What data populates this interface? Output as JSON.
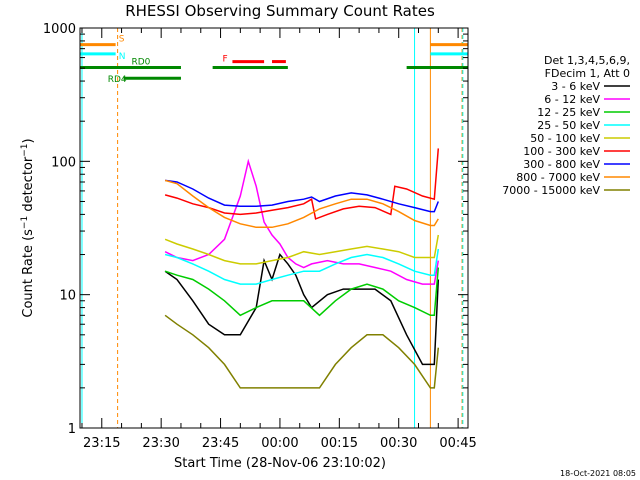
{
  "chart_data": {
    "type": "line",
    "title": "RHESSI Observing Summary Count Rates",
    "xlabel": "Start Time (28-Nov-06 23:10:02)",
    "ylabel": "Count Rate (s⁻¹ detector⁻¹)",
    "ylabel_main": "Count Rate (s",
    "ylabel_exp1": "−1",
    "ylabel_mid": " detector",
    "ylabel_exp2": "−1",
    "ylabel_end": ")",
    "yscale": "log",
    "ylim": [
      1,
      1000
    ],
    "xlim_minutes": [
      -0.5,
      97.5
    ],
    "xticks": [
      {
        "label": "23:15",
        "t": 5
      },
      {
        "label": "23:30",
        "t": 20
      },
      {
        "label": "23:45",
        "t": 35
      },
      {
        "label": "00:00",
        "t": 50
      },
      {
        "label": "00:15",
        "t": 65
      },
      {
        "label": "00:30",
        "t": 80
      },
      {
        "label": "00:45",
        "t": 95
      }
    ],
    "yticks": [
      {
        "label": "1",
        "v": 1
      },
      {
        "label": "10",
        "v": 10
      },
      {
        "label": "100",
        "v": 100
      },
      {
        "label": "1000",
        "v": 1000
      }
    ],
    "legend": {
      "placement": "right",
      "header": [
        "Det 1,3,4,5,6,9,",
        "FDecim 1, Att 0"
      ]
    },
    "series": [
      {
        "name": "3 - 6 keV",
        "color": "#000000",
        "x": [
          21,
          24,
          28,
          32,
          36,
          40,
          44,
          46,
          48,
          50,
          52,
          54,
          56,
          58,
          62,
          66,
          70,
          74,
          78,
          82,
          86,
          89,
          90
        ],
        "y": [
          15,
          13,
          9,
          6,
          5,
          5,
          8,
          18,
          13,
          20,
          17,
          14,
          10,
          8,
          10,
          11,
          11,
          11,
          9,
          5,
          3,
          3,
          13
        ]
      },
      {
        "name": "6 - 12 keV",
        "color": "#ff00ff",
        "x": [
          21,
          24,
          28,
          32,
          36,
          40,
          42,
          44,
          46,
          48,
          50,
          52,
          54,
          56,
          58,
          62,
          66,
          70,
          74,
          78,
          82,
          86,
          89,
          90
        ],
        "y": [
          21,
          19,
          18,
          20,
          26,
          55,
          100,
          65,
          35,
          28,
          24,
          19,
          17,
          16,
          17,
          18,
          17,
          17,
          16,
          15,
          13,
          12,
          12,
          18
        ]
      },
      {
        "name": "12 - 25 keV",
        "color": "#00cc00",
        "x": [
          21,
          24,
          28,
          32,
          36,
          40,
          44,
          48,
          52,
          56,
          60,
          64,
          68,
          72,
          76,
          80,
          84,
          88,
          89,
          90
        ],
        "y": [
          15,
          14,
          13,
          11,
          9,
          7,
          8,
          9,
          9,
          9,
          7,
          9,
          11,
          12,
          11,
          9,
          8,
          7,
          7,
          16
        ]
      },
      {
        "name": "25 - 50 keV",
        "color": "#00ffff",
        "x": [
          21,
          24,
          28,
          32,
          36,
          40,
          44,
          48,
          52,
          56,
          60,
          64,
          68,
          72,
          76,
          80,
          84,
          88,
          89,
          90
        ],
        "y": [
          20,
          19,
          17,
          15,
          13,
          12,
          12,
          13,
          14,
          15,
          15,
          17,
          19,
          20,
          19,
          17,
          15,
          14,
          14,
          22
        ]
      },
      {
        "name": "50 - 100 keV",
        "color": "#cccc00",
        "x": [
          21,
          24,
          28,
          32,
          36,
          40,
          44,
          48,
          52,
          56,
          60,
          64,
          68,
          72,
          76,
          80,
          84,
          88,
          89,
          90
        ],
        "y": [
          26,
          24,
          22,
          20,
          18,
          17,
          17,
          18,
          19,
          21,
          20,
          21,
          22,
          23,
          22,
          21,
          19,
          19,
          19,
          28
        ]
      },
      {
        "name": "100 - 300 keV",
        "color": "#ff0000",
        "x": [
          21,
          24,
          28,
          32,
          36,
          40,
          44,
          48,
          52,
          56,
          58,
          59,
          62,
          66,
          70,
          74,
          78,
          79,
          82,
          86,
          89,
          90
        ],
        "y": [
          56,
          53,
          48,
          45,
          41,
          40,
          41,
          43,
          45,
          48,
          52,
          37,
          40,
          44,
          46,
          45,
          40,
          65,
          62,
          55,
          52,
          125
        ]
      },
      {
        "name": "300 - 800 keV",
        "color": "#0000ff",
        "x": [
          21,
          24,
          28,
          32,
          36,
          40,
          44,
          48,
          52,
          56,
          58,
          60,
          64,
          68,
          72,
          76,
          80,
          84,
          88,
          89,
          90
        ],
        "y": [
          72,
          70,
          62,
          53,
          47,
          46,
          46,
          47,
          50,
          52,
          54,
          50,
          55,
          58,
          56,
          52,
          48,
          45,
          42,
          42,
          50
        ]
      },
      {
        "name": "800 - 7000 keV",
        "color": "#ff8800",
        "x": [
          21,
          24,
          28,
          32,
          36,
          40,
          44,
          48,
          52,
          56,
          60,
          64,
          68,
          72,
          76,
          80,
          84,
          88,
          89,
          90
        ],
        "y": [
          72,
          68,
          55,
          45,
          38,
          34,
          32,
          32,
          34,
          38,
          44,
          48,
          52,
          52,
          48,
          42,
          36,
          33,
          33,
          37
        ]
      },
      {
        "name": "7000 - 15000 keV",
        "color": "#808000",
        "x": [
          21,
          24,
          28,
          32,
          36,
          40,
          44,
          48,
          52,
          56,
          60,
          64,
          68,
          72,
          76,
          80,
          84,
          88,
          89,
          90
        ],
        "y": [
          7,
          6,
          5,
          4,
          3,
          2,
          2,
          2,
          2,
          2,
          2,
          3,
          4,
          5,
          5,
          4,
          3,
          2,
          2,
          4
        ]
      }
    ],
    "flags": [
      {
        "label": "S",
        "color": "#ff8800",
        "x": [
          [
            -0.5,
            8.5
          ],
          [
            88,
            97.5
          ]
        ],
        "y": 750
      },
      {
        "label": "N",
        "color": "#00ffff",
        "x": [
          [
            -0.5,
            8.5
          ],
          [
            88,
            97.5
          ]
        ],
        "y": 640
      },
      {
        "label": "RD0",
        "color": "#008800",
        "x": [
          [
            -0.5,
            25
          ],
          [
            33,
            52
          ],
          [
            82,
            97.5
          ]
        ],
        "y": 505
      },
      {
        "label": "RD4",
        "color": "#008800",
        "x": [
          [
            10.5,
            25
          ]
        ],
        "y": 420
      },
      {
        "label": "F",
        "color": "#ff0000",
        "x": [
          [
            38,
            46
          ],
          [
            48,
            51.5
          ]
        ],
        "y": 560
      }
    ],
    "vertical_markers": [
      {
        "t": 0,
        "color": "#00ffff",
        "style": "solid"
      },
      {
        "t": 9,
        "color": "#ff8800",
        "style": "dashed"
      },
      {
        "t": 84,
        "color": "#00ffff",
        "style": "solid"
      },
      {
        "t": 88,
        "color": "#ff8800",
        "style": "solid"
      },
      {
        "t": 96,
        "color": "#ff8800",
        "style": "dashed"
      },
      {
        "t": 96.2,
        "color": "#00ffff",
        "style": "dashed"
      }
    ],
    "footer_date": "18-Oct-2021 08:05",
    "grid": false
  }
}
